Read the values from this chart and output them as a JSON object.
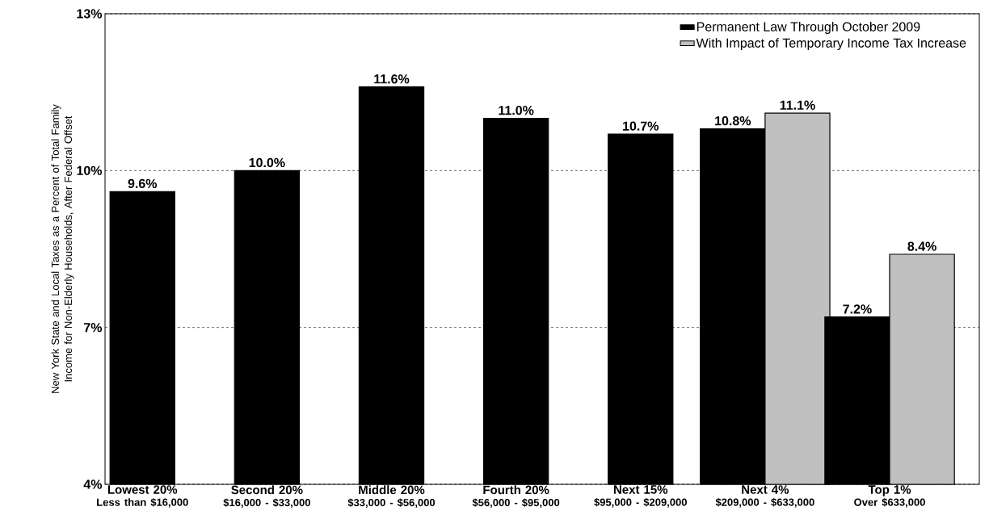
{
  "chart_data": {
    "type": "bar",
    "ylabel": "New York State and Local Taxes as a Percent of Total Family Income for Non-Elderly Households, After Federal Offset",
    "categories": [
      "Lowest 20%",
      "Second 20%",
      "Middle 20%",
      "Fourth 20%",
      "Next 15%",
      "Next 4%",
      "Top 1%"
    ],
    "annotations": [
      "Less than $16,000",
      "$16,000 - $33,000",
      "$33,000 - $56,000",
      "$56,000 - $95,000",
      "$95,000 - $209,000",
      "$209,000 - $633,000",
      "Over $633,000"
    ],
    "series": [
      {
        "name": "Permanent Law Through October 2009",
        "color": "#000000",
        "values": [
          9.6,
          10.0,
          11.6,
          11.0,
          10.7,
          10.8,
          7.2
        ],
        "value_labels": [
          "9.6%",
          "10.0%",
          "11.6%",
          "11.0%",
          "10.7%",
          "10.8%",
          "7.2%"
        ]
      },
      {
        "name": "With Impact of Temporary Income Tax Increase",
        "color": "#c0c0c0",
        "values": [
          null,
          null,
          null,
          null,
          null,
          11.1,
          8.4
        ],
        "value_labels": [
          null,
          null,
          null,
          null,
          null,
          "11.1%",
          "8.4%"
        ]
      }
    ],
    "ylim": [
      4,
      13
    ],
    "yticks": [
      {
        "value": 4,
        "label": "4%"
      },
      {
        "value": 7,
        "label": "7%"
      },
      {
        "value": 10,
        "label": "10%"
      },
      {
        "value": 13,
        "label": "13%"
      }
    ],
    "grid": "y",
    "legend": "top right"
  }
}
